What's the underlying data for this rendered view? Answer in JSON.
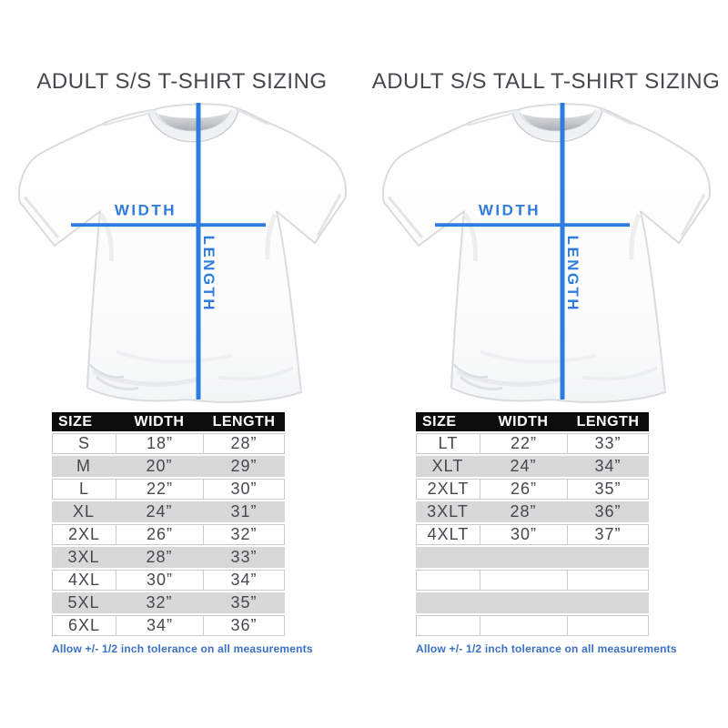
{
  "colors": {
    "accent_blue": "#2e7ce0",
    "footnote_blue": "#3a6fc4",
    "table_header_bg": "#0c0c0c",
    "table_header_text": "#ffffff",
    "row_alt_gray": "#d8d8d8",
    "text_dark": "#45484d"
  },
  "panels": [
    {
      "title": "ADULT S/S T-SHIRT SIZING",
      "diagram": {
        "width_label": "WIDTH",
        "length_label": "LENGTH"
      },
      "table": {
        "headers": [
          "SIZE",
          "WIDTH",
          "LENGTH"
        ],
        "rows": [
          [
            "S",
            "18”",
            "28”"
          ],
          [
            "M",
            "20”",
            "29”"
          ],
          [
            "L",
            "22”",
            "30”"
          ],
          [
            "XL",
            "24”",
            "31”"
          ],
          [
            "2XL",
            "26”",
            "32”"
          ],
          [
            "3XL",
            "28”",
            "33”"
          ],
          [
            "4XL",
            "30”",
            "34”"
          ],
          [
            "5XL",
            "32”",
            "35”"
          ],
          [
            "6XL",
            "34”",
            "36”"
          ]
        ],
        "empty_rows": 0
      },
      "footnote": "Allow +/- 1/2 inch tolerance on all measurements"
    },
    {
      "title": "ADULT S/S TALL T-SHIRT SIZING",
      "diagram": {
        "width_label": "WIDTH",
        "length_label": "LENGTH"
      },
      "table": {
        "headers": [
          "SIZE",
          "WIDTH",
          "LENGTH"
        ],
        "rows": [
          [
            "LT",
            "22”",
            "33”"
          ],
          [
            "XLT",
            "24”",
            "34”"
          ],
          [
            "2XLT",
            "26”",
            "35”"
          ],
          [
            "3XLT",
            "28”",
            "36”"
          ],
          [
            "4XLT",
            "30”",
            "37”"
          ]
        ],
        "empty_rows": 4
      },
      "footnote": "Allow +/- 1/2 inch tolerance on all measurements"
    }
  ]
}
